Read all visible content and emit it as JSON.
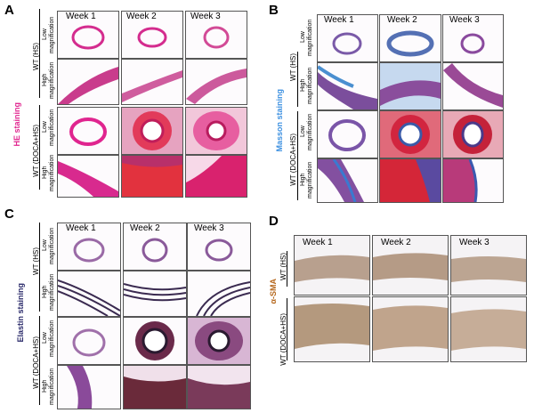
{
  "figure": {
    "panels": [
      {
        "letter": "A",
        "stain": "HE staining",
        "stain_color": "#e0258f"
      },
      {
        "letter": "B",
        "stain": "Masson staining",
        "stain_color": "#3b8fe0"
      },
      {
        "letter": "C",
        "stain": "Elastin staining",
        "stain_color": "#2a2a6a"
      },
      {
        "letter": "D",
        "stain": "α-SMA",
        "stain_color": "#b5671c"
      }
    ],
    "weeks": [
      "Week 1",
      "Week 2",
      "Week 3"
    ],
    "groups": [
      "WT (HS)",
      "WT (DOCA+HS)"
    ],
    "magnifications": {
      "low": "Low magnification",
      "high": "High magnification"
    },
    "low_lines": [
      "Low",
      "magnification"
    ],
    "high_lines": [
      "High",
      "magnification"
    ]
  }
}
